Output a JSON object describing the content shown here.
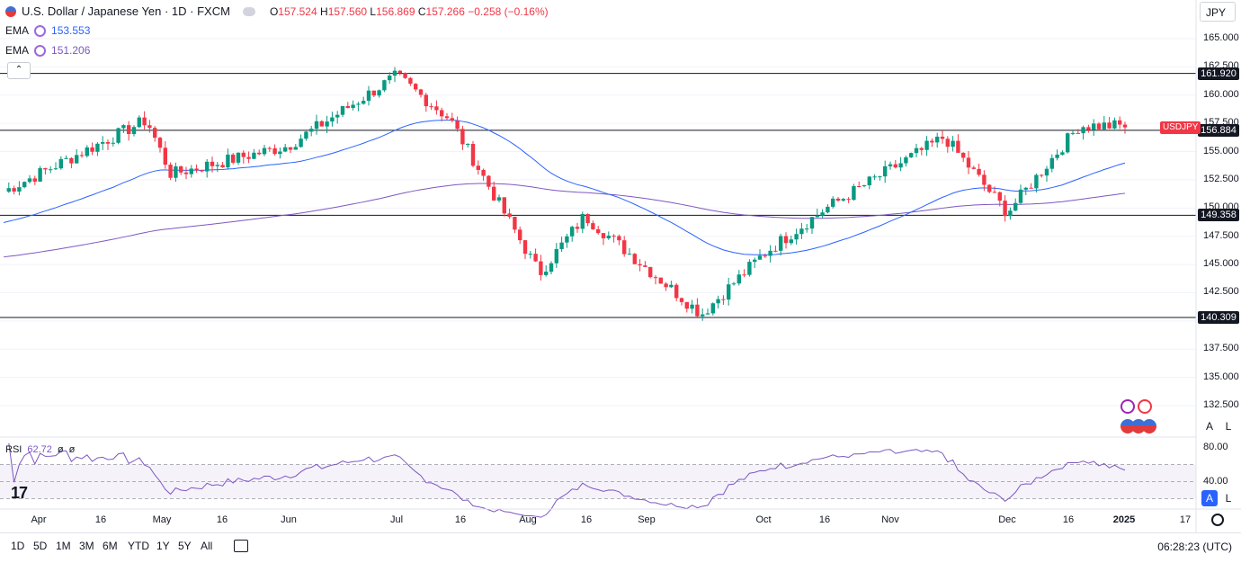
{
  "header": {
    "title": "U.S. Dollar / Japanese Yen · 1D · FXCM",
    "ohlc": {
      "o_label": "O",
      "o": "157.524",
      "h_label": "H",
      "h": "157.560",
      "l_label": "L",
      "l": "156.869",
      "c_label": "C",
      "c": "157.266",
      "change": "−0.258 (−0.16%)"
    }
  },
  "indicators": [
    {
      "name": "EMA",
      "value": "153.553",
      "color": "#2962ff"
    },
    {
      "name": "EMA",
      "value": "151.206",
      "color": "#7e57c2"
    }
  ],
  "currency_button": "JPY",
  "symbol_label": "USDJPY",
  "rsi": {
    "name": "RSI",
    "value": "62.72",
    "extra1": "ø",
    "extra2": "ø",
    "ticks": [
      "80.00",
      "40.00"
    ]
  },
  "bottom": {
    "ranges": [
      "1D",
      "5D",
      "1M",
      "3M",
      "6M",
      "YTD",
      "1Y",
      "5Y",
      "All"
    ],
    "clock": "06:28:23 (UTC)"
  },
  "scale_buttons": {
    "a": "A",
    "l": "L"
  },
  "colors": {
    "up": "#089981",
    "down": "#f23645",
    "ema_fast": "#2962ff",
    "ema_slow": "#7e57c2"
  },
  "chart_data": {
    "type": "candlestick",
    "y_ticks": [
      "165.000",
      "162.500",
      "160.000",
      "157.500",
      "155.000",
      "152.500",
      "150.000",
      "147.500",
      "145.000",
      "142.500",
      "140.000",
      "137.500",
      "135.000",
      "132.500"
    ],
    "x_ticks": [
      "Apr",
      "16",
      "May",
      "16",
      "Jun",
      "Jul",
      "16",
      "Aug",
      "16",
      "Sep",
      "Oct",
      "16",
      "Nov",
      "Dec",
      "16",
      "2025",
      "17"
    ],
    "price_levels": [
      {
        "value": 161.92,
        "label": "161.920"
      },
      {
        "value": 156.884,
        "label": "156.884"
      },
      {
        "value": 149.358,
        "label": "149.358"
      },
      {
        "value": 140.309,
        "label": "140.309"
      }
    ],
    "key_closes": [
      {
        "date": "Apr",
        "close": 151.3
      },
      {
        "date": "Apr 29",
        "close": 157.8
      },
      {
        "date": "May",
        "close": 153.0
      },
      {
        "date": "Jun",
        "close": 155.5
      },
      {
        "date": "Jul 3",
        "close": 161.7
      },
      {
        "date": "Jul 11",
        "close": 157.9
      },
      {
        "date": "Aug 5",
        "close": 144.2
      },
      {
        "date": "Aug 15",
        "close": 149.3
      },
      {
        "date": "Sep 16",
        "close": 140.6
      },
      {
        "date": "Oct 1",
        "close": 146.0
      },
      {
        "date": "Oct 16",
        "close": 149.9
      },
      {
        "date": "Nov 15",
        "close": 156.3
      },
      {
        "date": "Dec 3",
        "close": 149.6
      },
      {
        "date": "Dec 19",
        "close": 157.3
      },
      {
        "date": "Jan 2",
        "close": 157.266
      }
    ]
  }
}
